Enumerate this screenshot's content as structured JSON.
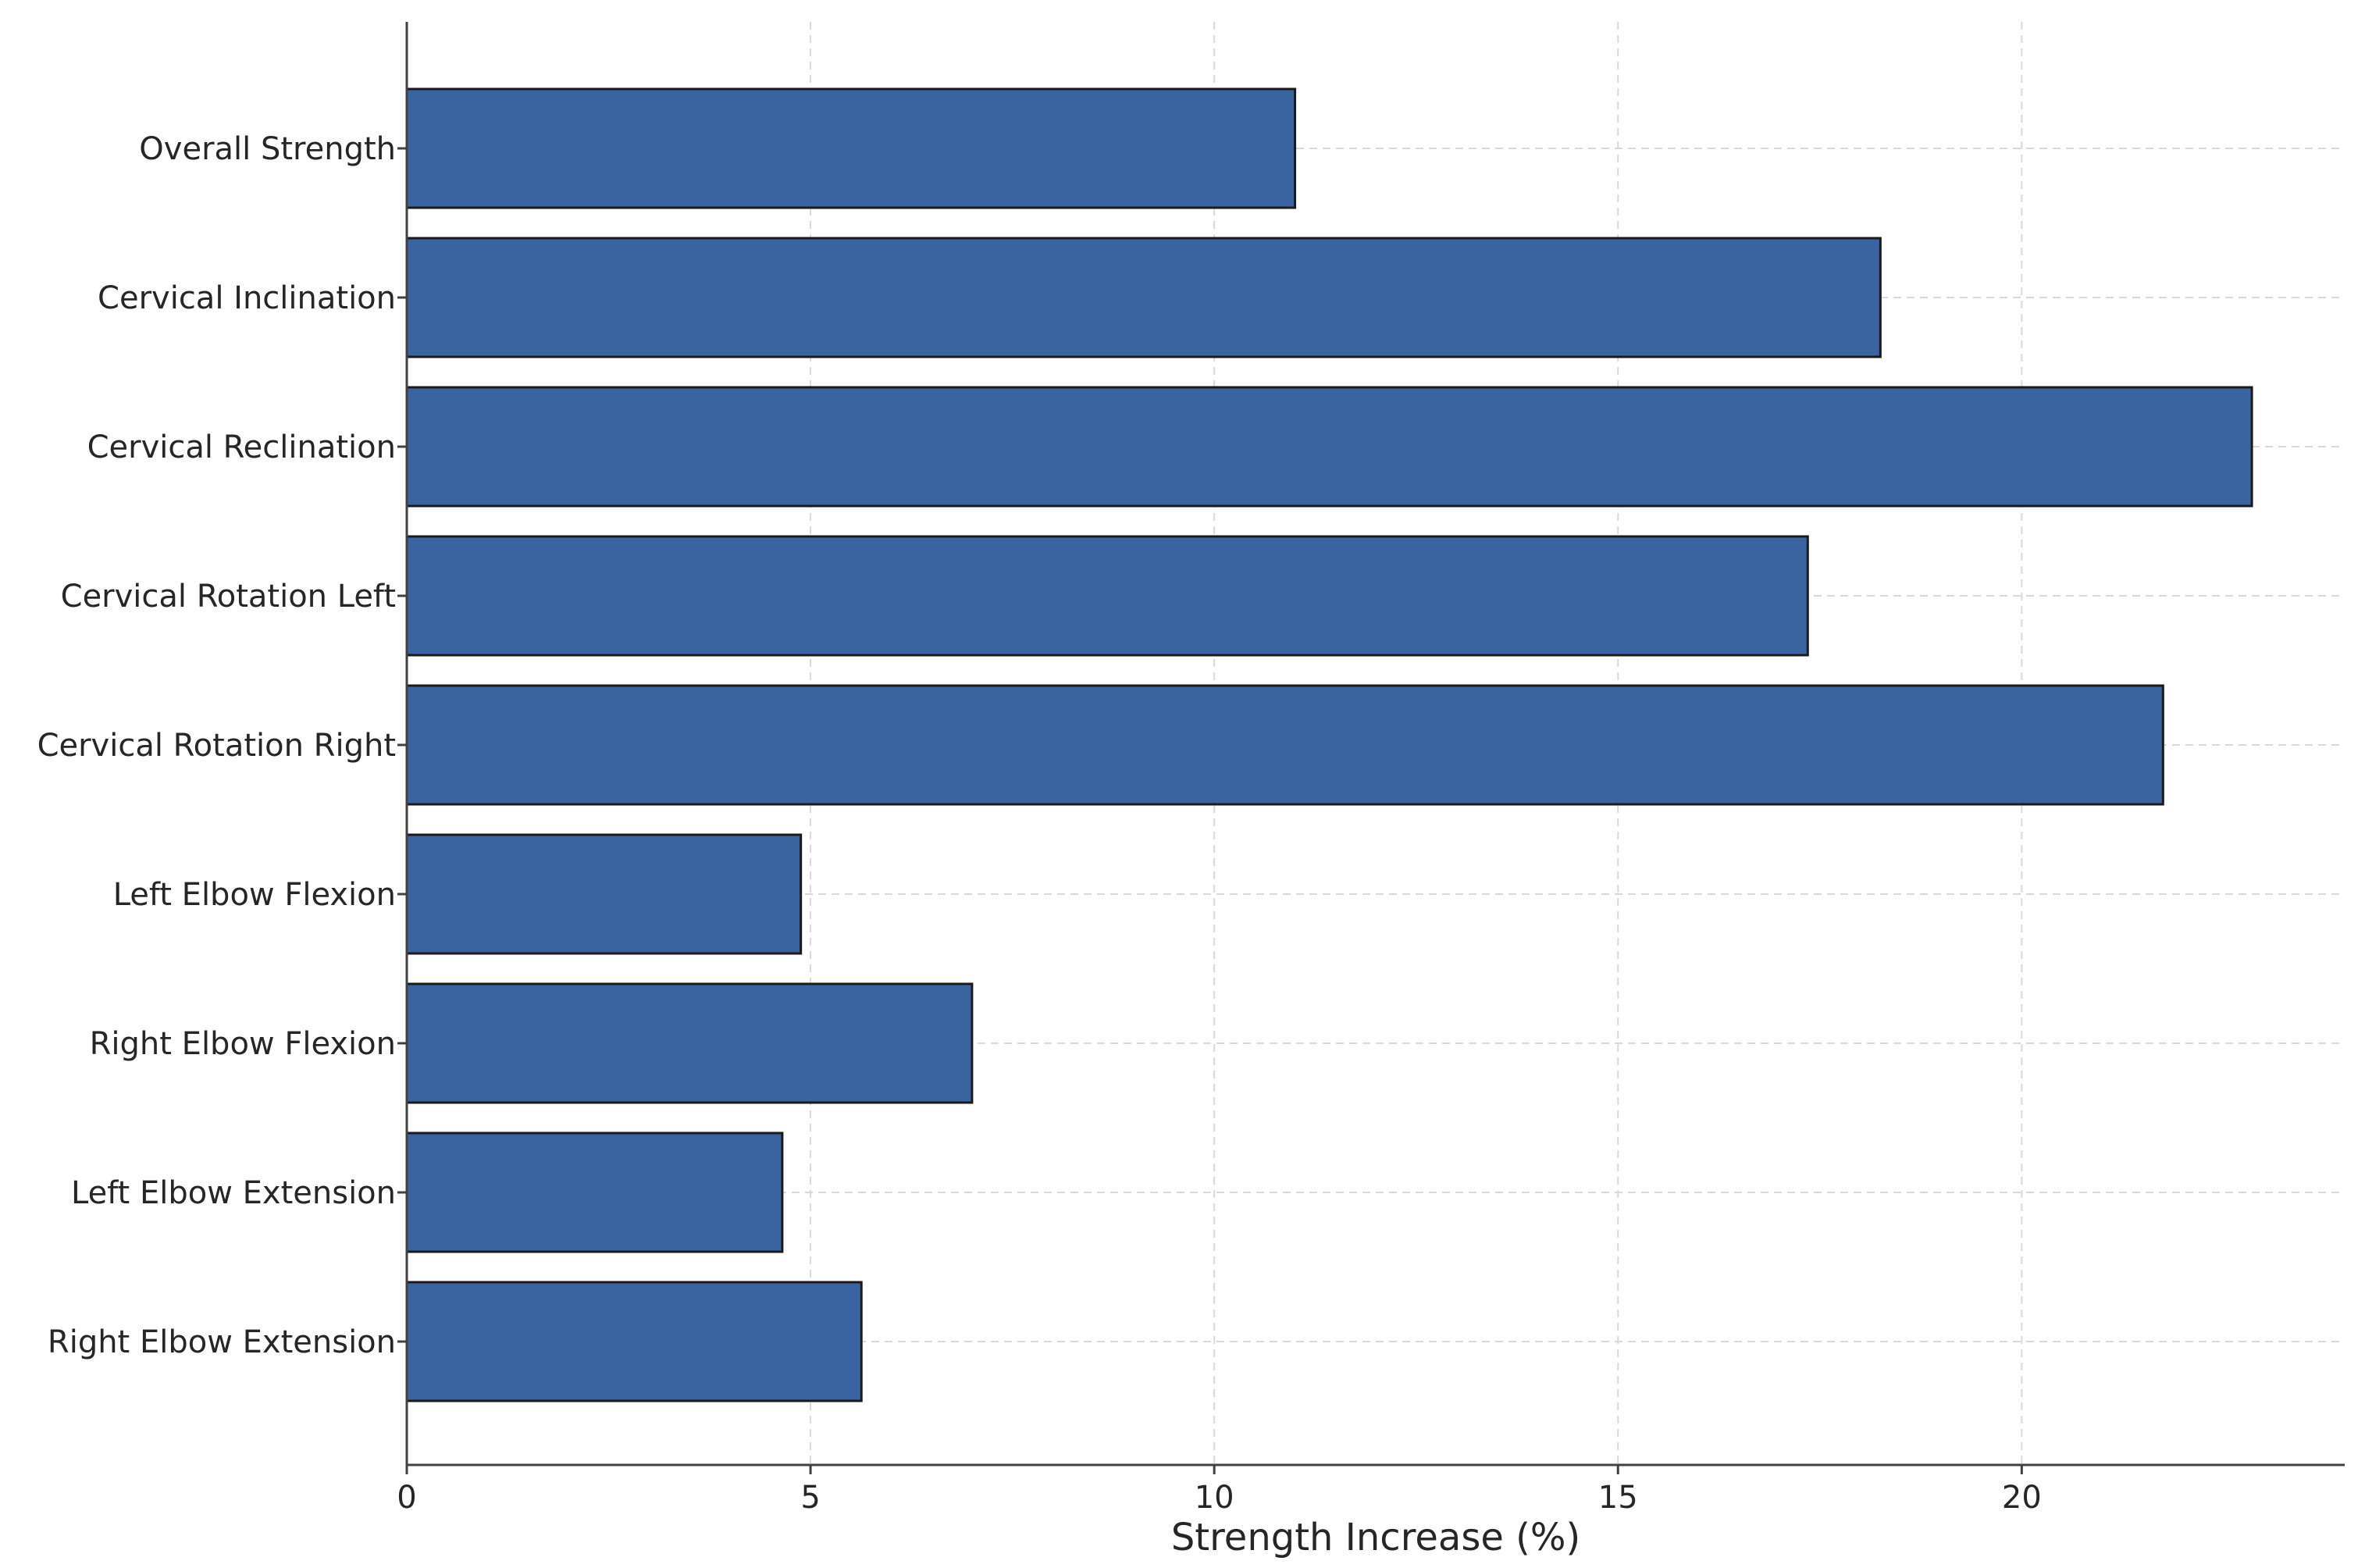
{
  "chart_data": {
    "type": "bar",
    "orientation": "horizontal",
    "categories": [
      "Overall Strength",
      "Cervical Inclination",
      "Cervical Reclination",
      "Cervical Rotation Left",
      "Cervical Rotation Right",
      "Left Elbow Flexion",
      "Right Elbow Flexion",
      "Left Elbow Extension",
      "Right Elbow Extension"
    ],
    "values": [
      11.0,
      18.25,
      22.85,
      17.35,
      21.75,
      4.88,
      7.0,
      4.65,
      5.63
    ],
    "title": "",
    "xlabel": "Strength Increase (%)",
    "ylabel": "",
    "xlim": [
      0,
      24
    ],
    "xticks": [
      0,
      5,
      10,
      15,
      20
    ],
    "grid": true,
    "bar_color": "#3a64a1",
    "edge_color": "#1a1a1a"
  }
}
